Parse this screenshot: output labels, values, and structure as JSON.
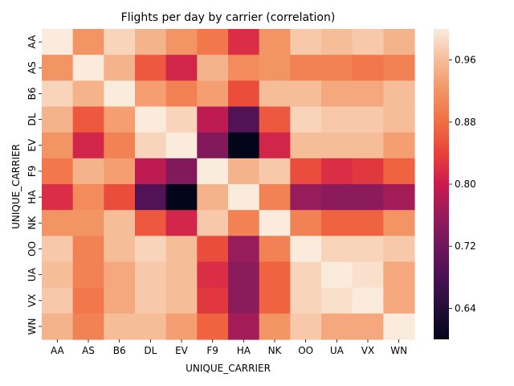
{
  "chart_data": {
    "type": "heatmap",
    "title": "Flights per day by carrier (correlation)",
    "xlabel": "UNIQUE_CARRIER",
    "ylabel": "UNIQUE_CARRIER",
    "x_categories": [
      "AA",
      "AS",
      "B6",
      "DL",
      "EV",
      "F9",
      "HA",
      "NK",
      "OO",
      "UA",
      "VX",
      "WN"
    ],
    "y_categories": [
      "AA",
      "AS",
      "B6",
      "DL",
      "EV",
      "F9",
      "HA",
      "NK",
      "OO",
      "UA",
      "VX",
      "WN"
    ],
    "values": [
      [
        1.0,
        0.92,
        0.98,
        0.95,
        0.92,
        0.89,
        0.82,
        0.92,
        0.97,
        0.96,
        0.97,
        0.95
      ],
      [
        0.92,
        1.0,
        0.95,
        0.86,
        0.81,
        0.95,
        0.91,
        0.92,
        0.9,
        0.9,
        0.89,
        0.9
      ],
      [
        0.98,
        0.95,
        1.0,
        0.93,
        0.9,
        0.93,
        0.85,
        0.96,
        0.96,
        0.94,
        0.94,
        0.96
      ],
      [
        0.95,
        0.86,
        0.93,
        1.0,
        0.98,
        0.79,
        0.69,
        0.86,
        0.98,
        0.97,
        0.97,
        0.96
      ],
      [
        0.92,
        0.81,
        0.9,
        0.98,
        1.0,
        0.74,
        0.6,
        0.81,
        0.96,
        0.96,
        0.96,
        0.93
      ],
      [
        0.89,
        0.95,
        0.93,
        0.79,
        0.74,
        1.0,
        0.95,
        0.97,
        0.85,
        0.82,
        0.83,
        0.87
      ],
      [
        0.82,
        0.91,
        0.85,
        0.69,
        0.6,
        0.95,
        1.0,
        0.9,
        0.76,
        0.75,
        0.75,
        0.77
      ],
      [
        0.92,
        0.92,
        0.96,
        0.86,
        0.81,
        0.97,
        0.9,
        1.0,
        0.9,
        0.87,
        0.87,
        0.92
      ],
      [
        0.97,
        0.9,
        0.96,
        0.98,
        0.96,
        0.85,
        0.76,
        0.9,
        1.0,
        0.98,
        0.98,
        0.97
      ],
      [
        0.96,
        0.9,
        0.94,
        0.97,
        0.96,
        0.82,
        0.75,
        0.87,
        0.98,
        1.0,
        0.99,
        0.94
      ],
      [
        0.97,
        0.89,
        0.94,
        0.97,
        0.96,
        0.83,
        0.75,
        0.87,
        0.98,
        0.99,
        1.0,
        0.94
      ],
      [
        0.95,
        0.9,
        0.96,
        0.96,
        0.93,
        0.87,
        0.77,
        0.92,
        0.97,
        0.94,
        0.94,
        1.0
      ]
    ],
    "colorbar": {
      "min": 0.6,
      "max": 1.0,
      "ticks": [
        0.64,
        0.72,
        0.8,
        0.88,
        0.96
      ],
      "tick_labels": [
        "0.64",
        "0.72",
        "0.80",
        "0.88",
        "0.96"
      ],
      "colormap": "rocket"
    }
  }
}
